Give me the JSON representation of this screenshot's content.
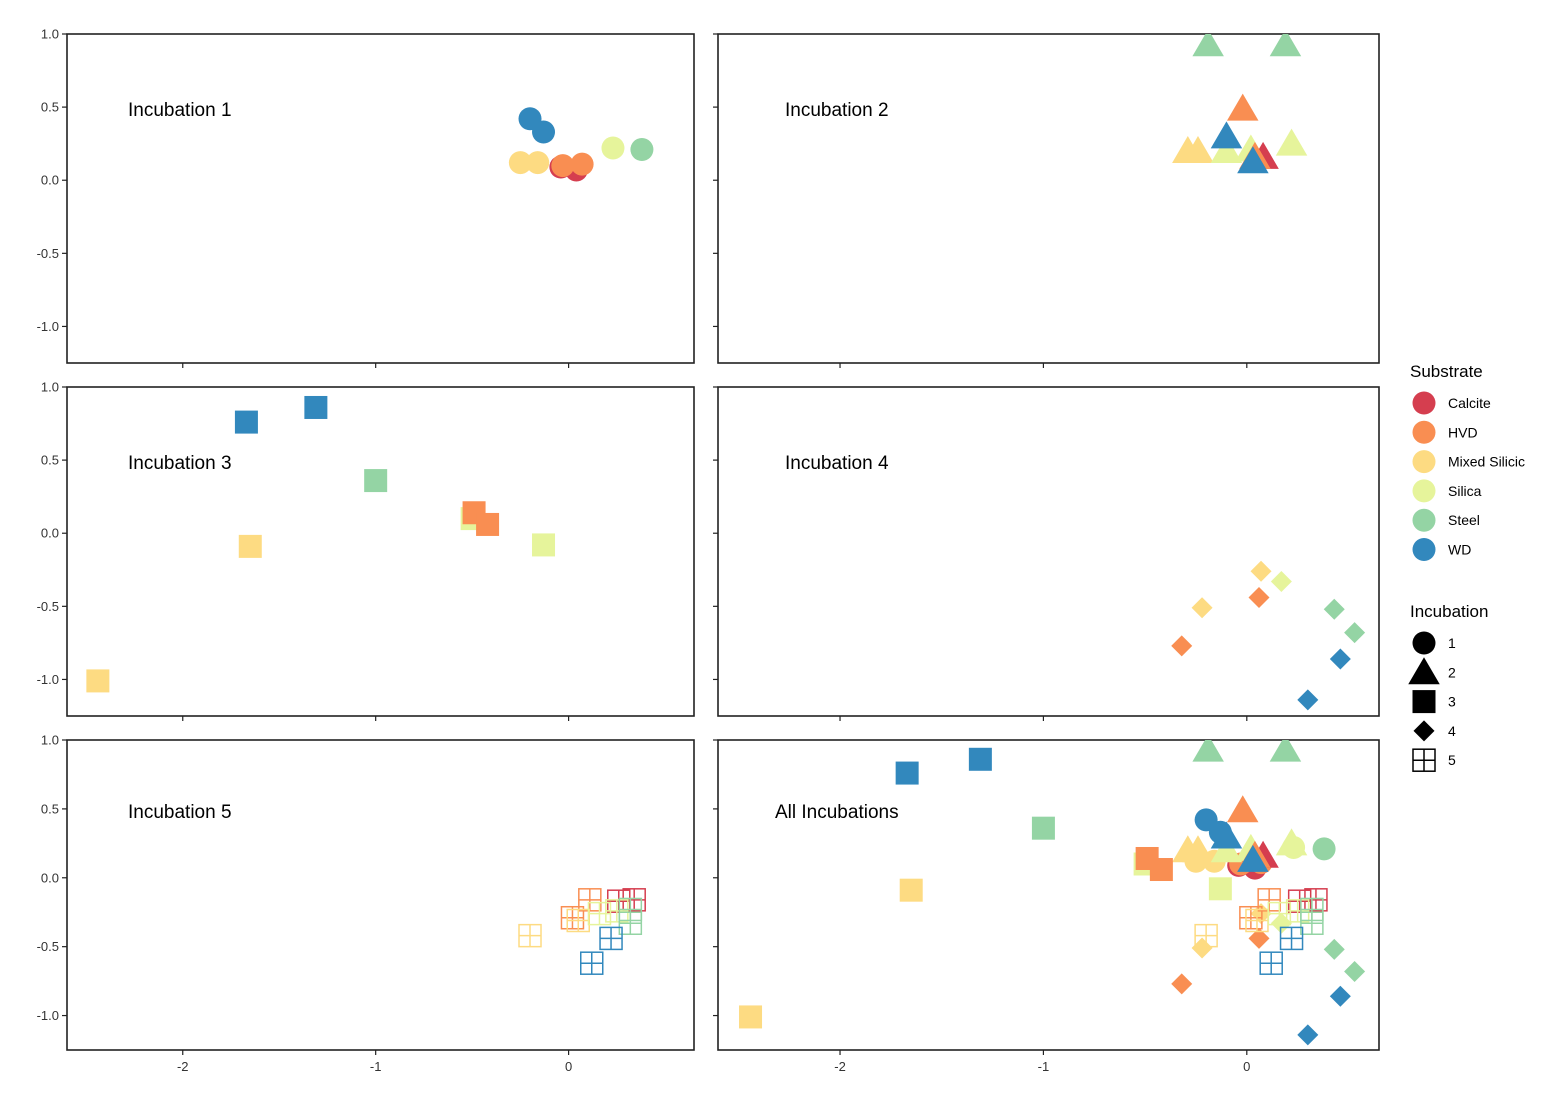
{
  "chart_data": {
    "type": "scatter",
    "xlim": [
      -2.6,
      0.65
    ],
    "ylim": [
      -1.25,
      1.0
    ],
    "x_ticks": [
      -2,
      -1,
      0
    ],
    "y_ticks": [
      1.0,
      0.5,
      0.0,
      -0.5,
      -1.0
    ],
    "x_tick_labels": [
      "-2",
      "-1",
      "0"
    ],
    "y_tick_labels": [
      "1.0",
      "0.5",
      "0.0",
      "-0.5",
      "-1.0"
    ],
    "colors": {
      "Calcite": "#d53e4f",
      "HVD": "#f98e52",
      "Mixed Silicic": "#fddb82",
      "Silica": "#e6f49b",
      "Steel": "#94d4a4",
      "WD": "#3288bd"
    },
    "panels": [
      {
        "label": "Incubation 1",
        "points": [
          {
            "x": -0.2,
            "y": 0.42,
            "substrate": "WD",
            "incubation": 1
          },
          {
            "x": -0.13,
            "y": 0.33,
            "substrate": "WD",
            "incubation": 1
          },
          {
            "x": -0.25,
            "y": 0.12,
            "substrate": "Mixed Silicic",
            "incubation": 1
          },
          {
            "x": -0.16,
            "y": 0.12,
            "substrate": "Mixed Silicic",
            "incubation": 1
          },
          {
            "x": 0.04,
            "y": 0.07,
            "substrate": "Calcite",
            "incubation": 1
          },
          {
            "x": -0.04,
            "y": 0.09,
            "substrate": "Calcite",
            "incubation": 1
          },
          {
            "x": -0.03,
            "y": 0.1,
            "substrate": "HVD",
            "incubation": 1
          },
          {
            "x": 0.07,
            "y": 0.11,
            "substrate": "HVD",
            "incubation": 1
          },
          {
            "x": 0.23,
            "y": 0.22,
            "substrate": "Silica",
            "incubation": 1
          },
          {
            "x": 0.38,
            "y": 0.21,
            "substrate": "Steel",
            "incubation": 1
          }
        ]
      },
      {
        "label": "Incubation 2",
        "points": [
          {
            "x": -0.19,
            "y": 0.93,
            "substrate": "Steel",
            "incubation": 2
          },
          {
            "x": 0.19,
            "y": 0.93,
            "substrate": "Steel",
            "incubation": 2
          },
          {
            "x": -0.02,
            "y": 0.49,
            "substrate": "HVD",
            "incubation": 2
          },
          {
            "x": -0.29,
            "y": 0.2,
            "substrate": "Mixed Silicic",
            "incubation": 2
          },
          {
            "x": -0.24,
            "y": 0.2,
            "substrate": "Mixed Silicic",
            "incubation": 2
          },
          {
            "x": -0.1,
            "y": 0.2,
            "substrate": "Silica",
            "incubation": 2
          },
          {
            "x": 0.02,
            "y": 0.21,
            "substrate": "Silica",
            "incubation": 2
          },
          {
            "x": 0.22,
            "y": 0.25,
            "substrate": "Silica",
            "incubation": 2
          },
          {
            "x": 0.08,
            "y": 0.16,
            "substrate": "Calcite",
            "incubation": 2
          },
          {
            "x": 0.04,
            "y": 0.16,
            "substrate": "HVD",
            "incubation": 2
          },
          {
            "x": -0.1,
            "y": 0.3,
            "substrate": "WD",
            "incubation": 2
          },
          {
            "x": 0.03,
            "y": 0.13,
            "substrate": "WD",
            "incubation": 2
          }
        ]
      },
      {
        "label": "Incubation 3",
        "points": [
          {
            "x": -1.67,
            "y": 0.76,
            "substrate": "WD",
            "incubation": 3
          },
          {
            "x": -1.31,
            "y": 0.86,
            "substrate": "WD",
            "incubation": 3
          },
          {
            "x": -1.0,
            "y": 0.36,
            "substrate": "Steel",
            "incubation": 3
          },
          {
            "x": -0.5,
            "y": 0.1,
            "substrate": "Silica",
            "incubation": 3
          },
          {
            "x": -0.49,
            "y": 0.14,
            "substrate": "HVD",
            "incubation": 3
          },
          {
            "x": -0.42,
            "y": 0.06,
            "substrate": "HVD",
            "incubation": 3
          },
          {
            "x": -0.13,
            "y": -0.08,
            "substrate": "Silica",
            "incubation": 3
          },
          {
            "x": -1.65,
            "y": -0.09,
            "substrate": "Mixed Silicic",
            "incubation": 3
          },
          {
            "x": -2.44,
            "y": -1.01,
            "substrate": "Mixed Silicic",
            "incubation": 3
          }
        ]
      },
      {
        "label": "Incubation 4",
        "points": [
          {
            "x": 0.07,
            "y": -0.26,
            "substrate": "Mixed Silicic",
            "incubation": 4
          },
          {
            "x": 0.17,
            "y": -0.33,
            "substrate": "Silica",
            "incubation": 4
          },
          {
            "x": -0.22,
            "y": -0.51,
            "substrate": "Mixed Silicic",
            "incubation": 4
          },
          {
            "x": 0.06,
            "y": -0.44,
            "substrate": "HVD",
            "incubation": 4
          },
          {
            "x": 0.43,
            "y": -0.52,
            "substrate": "Steel",
            "incubation": 4
          },
          {
            "x": 0.53,
            "y": -0.68,
            "substrate": "Steel",
            "incubation": 4
          },
          {
            "x": -0.32,
            "y": -0.77,
            "substrate": "HVD",
            "incubation": 4
          },
          {
            "x": 0.46,
            "y": -0.86,
            "substrate": "WD",
            "incubation": 4
          },
          {
            "x": 0.3,
            "y": -1.14,
            "substrate": "WD",
            "incubation": 4
          }
        ]
      },
      {
        "label": "Incubation 5",
        "points": [
          {
            "x": 0.26,
            "y": -0.17,
            "substrate": "Calcite",
            "incubation": 5
          },
          {
            "x": 0.34,
            "y": -0.16,
            "substrate": "Calcite",
            "incubation": 5
          },
          {
            "x": 0.11,
            "y": -0.16,
            "substrate": "HVD",
            "incubation": 5
          },
          {
            "x": 0.02,
            "y": -0.29,
            "substrate": "HVD",
            "incubation": 5
          },
          {
            "x": 0.05,
            "y": -0.31,
            "substrate": "Mixed Silicic",
            "incubation": 5
          },
          {
            "x": 0.16,
            "y": -0.26,
            "substrate": "Silica",
            "incubation": 5
          },
          {
            "x": 0.25,
            "y": -0.24,
            "substrate": "Silica",
            "incubation": 5
          },
          {
            "x": 0.32,
            "y": -0.23,
            "substrate": "Steel",
            "incubation": 5
          },
          {
            "x": 0.32,
            "y": -0.33,
            "substrate": "Steel",
            "incubation": 5
          },
          {
            "x": -0.2,
            "y": -0.42,
            "substrate": "Mixed Silicic",
            "incubation": 5
          },
          {
            "x": 0.22,
            "y": -0.44,
            "substrate": "WD",
            "incubation": 5
          },
          {
            "x": 0.12,
            "y": -0.62,
            "substrate": "WD",
            "incubation": 5
          }
        ]
      },
      {
        "label": "All Incubations",
        "combined": true
      }
    ],
    "legend": {
      "substrate_title": "Substrate",
      "substrates": [
        "Calcite",
        "HVD",
        "Mixed Silicic",
        "Silica",
        "Steel",
        "WD"
      ],
      "incubation_title": "Incubation",
      "incubations": [
        {
          "label": "1",
          "shape": "circle"
        },
        {
          "label": "2",
          "shape": "triangle"
        },
        {
          "label": "3",
          "shape": "square"
        },
        {
          "label": "4",
          "shape": "diamond"
        },
        {
          "label": "5",
          "shape": "square-grid"
        }
      ]
    }
  }
}
